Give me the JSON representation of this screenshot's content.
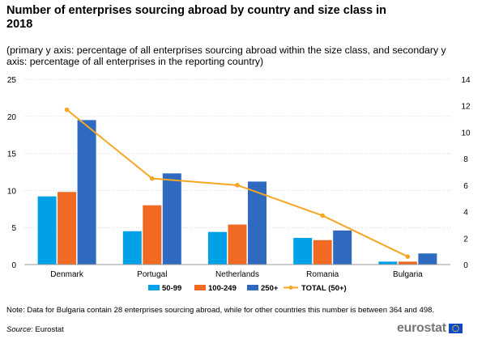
{
  "title": "Number of enterprises sourcing abroad by country and size class in 2018",
  "subtitle": "(primary y axis: percentage of all enterprises sourcing abroad within the size class, and secondary y axis: percentage of all enterprises in the reporting country)",
  "note": "Note: Data for Bulgaria contain 28 enterprises sourcing abroad, while for other countries this number is between 364 and 498.",
  "source": {
    "label": "Source:",
    "value": "Eurostat"
  },
  "logo": {
    "text": "eurostat",
    "flag_icon": "eu-flag-icon"
  },
  "colors": {
    "s50_99": "#00a1e6",
    "s100_249": "#f06a23",
    "s250": "#2e6bc0",
    "total": "#f5a623",
    "grid": "#d9d9d9",
    "axis": "#666666"
  },
  "chart_data": {
    "type": "bar",
    "categories": [
      "Denmark",
      "Portugal",
      "Netherlands",
      "Romania",
      "Bulgaria"
    ],
    "series": [
      {
        "name": "50-99",
        "axis": "primary",
        "type": "bar",
        "values": [
          9.2,
          4.5,
          4.4,
          3.6,
          0.4
        ]
      },
      {
        "name": "100-249",
        "axis": "primary",
        "type": "bar",
        "values": [
          9.8,
          8.0,
          5.4,
          3.3,
          0.4
        ]
      },
      {
        "name": "250+",
        "axis": "primary",
        "type": "bar",
        "values": [
          19.5,
          12.3,
          11.2,
          4.6,
          1.5
        ]
      },
      {
        "name": "TOTAL (50+)",
        "axis": "secondary",
        "type": "line",
        "values": [
          11.7,
          6.5,
          6.0,
          3.7,
          0.6
        ]
      }
    ],
    "ylim": [
      0,
      25
    ],
    "yticks": [
      0,
      5,
      10,
      15,
      20,
      25
    ],
    "y2lim": [
      0,
      14
    ],
    "y2ticks": [
      0,
      2,
      4,
      6,
      8,
      10,
      12,
      14
    ],
    "grid": true,
    "legend_position": "bottom"
  }
}
